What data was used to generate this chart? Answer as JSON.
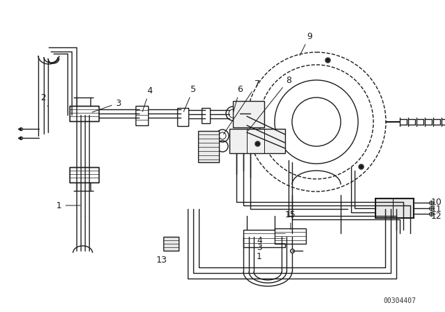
{
  "background_color": "#ffffff",
  "line_color": "#1a1a1a",
  "label_color": "#111111",
  "part_number": "00304407",
  "label_fontsize": 9,
  "figsize": [
    6.4,
    4.48
  ],
  "dpi": 100
}
